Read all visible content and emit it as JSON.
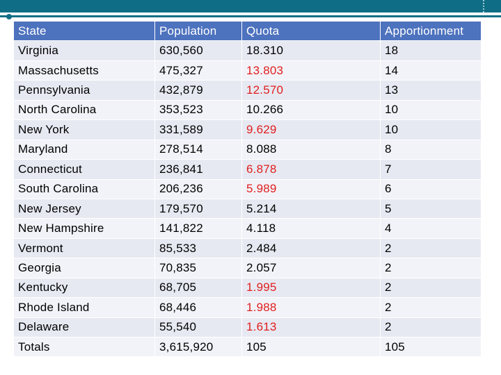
{
  "table": {
    "headers": [
      "State",
      "Population",
      "Quota",
      "Apportionment"
    ],
    "rows": [
      {
        "state": "Virginia",
        "population": "630,560",
        "quota": "18.310",
        "apportionment": "18",
        "quota_color": "black"
      },
      {
        "state": "Massachusetts",
        "population": "475,327",
        "quota": "13.803",
        "apportionment": "14",
        "quota_color": "red"
      },
      {
        "state": "Pennsylvania",
        "population": "432,879",
        "quota": "12.570",
        "apportionment": "13",
        "quota_color": "red"
      },
      {
        "state": "North Carolina",
        "population": "353,523",
        "quota": "10.266",
        "apportionment": "10",
        "quota_color": "black"
      },
      {
        "state": "New York",
        "population": "331,589",
        "quota": "9.629",
        "apportionment": "10",
        "quota_color": "red"
      },
      {
        "state": "Maryland",
        "population": "278,514",
        "quota": "8.088",
        "apportionment": "8",
        "quota_color": "black"
      },
      {
        "state": "Connecticut",
        "population": "236,841",
        "quota": "6.878",
        "apportionment": "7",
        "quota_color": "red"
      },
      {
        "state": "South Carolina",
        "population": "206,236",
        "quota": "5.989",
        "apportionment": "6",
        "quota_color": "red"
      },
      {
        "state": "New Jersey",
        "population": "179,570",
        "quota": "5.214",
        "apportionment": "5",
        "quota_color": "black"
      },
      {
        "state": "New Hampshire",
        "population": "141,822",
        "quota": "4.118",
        "apportionment": "4",
        "quota_color": "black"
      },
      {
        "state": "Vermont",
        "population": "85,533",
        "quota": "2.484",
        "apportionment": "2",
        "quota_color": "black"
      },
      {
        "state": "Georgia",
        "population": "70,835",
        "quota": "2.057",
        "apportionment": "2",
        "quota_color": "black"
      },
      {
        "state": "Kentucky",
        "population": "68,705",
        "quota": "1.995",
        "apportionment": "2",
        "quota_color": "red"
      },
      {
        "state": "Rhode Island",
        "population": "68,446",
        "quota": "1.988",
        "apportionment": "2",
        "quota_color": "red"
      },
      {
        "state": "Delaware",
        "population": "55,540",
        "quota": "1.613",
        "apportionment": "2",
        "quota_color": "red"
      },
      {
        "state": "Totals",
        "population": "3,615,920",
        "quota": "105",
        "apportionment": "105",
        "quota_color": "black"
      }
    ]
  },
  "colors": {
    "header_bg": "#4d72be",
    "row_bg": "#e7e9f2",
    "row_alt_bg": "#f2f3f8",
    "highlight_text": "#e01e1e",
    "accent": "#0f6e85"
  }
}
